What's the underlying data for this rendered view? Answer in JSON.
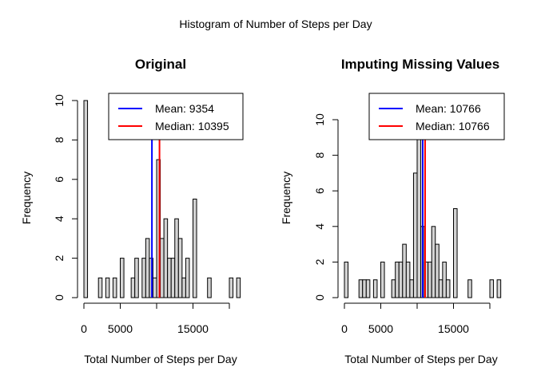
{
  "title": "Histogram of Number of Steps per Day",
  "chart_data": [
    {
      "type": "bar",
      "title": "Original",
      "xlabel": "Total Number of Steps per Day",
      "ylabel": "Frequency",
      "bin_width": 500,
      "bin_start": 0,
      "xlim": [
        0,
        22000
      ],
      "ylim": [
        0,
        10
      ],
      "x_ticks": [
        0,
        5000,
        15000
      ],
      "y_ticks": [
        0,
        2,
        4,
        6,
        8,
        10
      ],
      "values": [
        10,
        0,
        0,
        0,
        0,
        0,
        0,
        0,
        0,
        0,
        0,
        0,
        0,
        0,
        0,
        0,
        0,
        0,
        0,
        0,
        0,
        0,
        0,
        0,
        0,
        0,
        0,
        0,
        0,
        0,
        0,
        0,
        0,
        0,
        0,
        0,
        0,
        0,
        0,
        0,
        0,
        0,
        0,
        0,
        0
      ],
      "bins_x": [
        0,
        2000,
        3000,
        4000,
        5000,
        6500,
        7000,
        8000,
        8500,
        9000,
        9500,
        10000,
        10500,
        11000,
        11500,
        12000,
        12500,
        13000,
        13500,
        14000,
        15000,
        17000,
        20000,
        21000
      ],
      "bins_y": [
        10,
        1,
        1,
        1,
        2,
        1,
        2,
        2,
        3,
        2,
        1,
        7,
        3,
        4,
        2,
        2,
        4,
        3,
        1,
        2,
        5,
        1,
        1,
        1
      ],
      "mean": 9354,
      "median": 10395,
      "legend": [
        {
          "label": "Mean: 9354",
          "color": "#0000ff"
        },
        {
          "label": "Median: 10395",
          "color": "#ff0000"
        }
      ],
      "legend_position": "top-right"
    },
    {
      "type": "bar",
      "title": "Imputing Missing Values",
      "xlabel": "Total Number of Steps per Day",
      "ylabel": "Frequency",
      "bin_width": 500,
      "xlim": [
        0,
        22000
      ],
      "ylim": [
        0,
        10
      ],
      "x_ticks": [
        0,
        5000,
        15000
      ],
      "y_ticks": [
        0,
        2,
        4,
        6,
        8,
        10
      ],
      "bins_x": [
        0,
        2000,
        2500,
        3000,
        4000,
        5000,
        6500,
        7000,
        7500,
        8000,
        8500,
        9000,
        9500,
        10000,
        10500,
        11000,
        11500,
        12000,
        12500,
        13000,
        13500,
        14000,
        15000,
        17000,
        20000,
        21000
      ],
      "bins_y": [
        2,
        1,
        1,
        1,
        1,
        2,
        1,
        2,
        2,
        3,
        2,
        1,
        7,
        11,
        4,
        2,
        2,
        4,
        3,
        1,
        2,
        1,
        5,
        1,
        1,
        1
      ],
      "mean": 10766,
      "median": 10766,
      "legend": [
        {
          "label": "Mean: 10766",
          "color": "#0000ff"
        },
        {
          "label": "Median: 10766",
          "color": "#ff0000"
        }
      ],
      "legend_position": "top-right"
    }
  ]
}
